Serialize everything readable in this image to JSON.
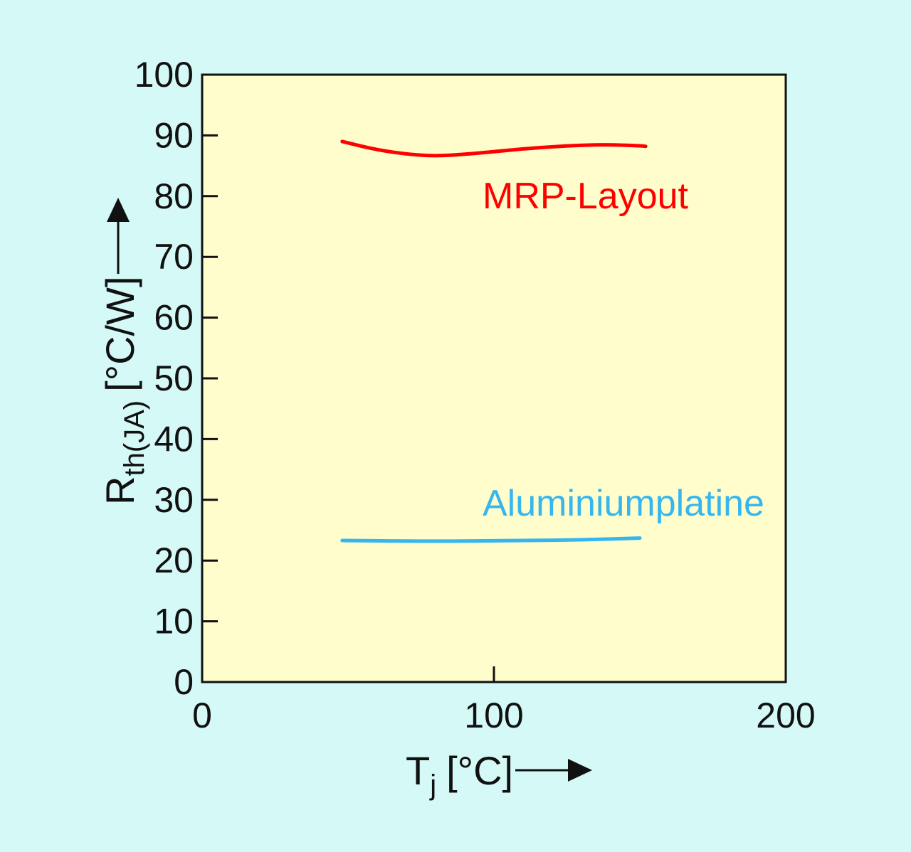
{
  "colors": {
    "page_background": "#d4f9f6",
    "plot_background": "#fffdcc",
    "axis": "#111111"
  },
  "chart_data": {
    "type": "line",
    "title": "",
    "xlabel": {
      "main": "T",
      "sub": "j",
      "unit": "[°C]"
    },
    "ylabel": {
      "main": "R",
      "sub": "th(JA)",
      "unit": "[°C/W]"
    },
    "xlim": [
      0,
      200
    ],
    "ylim": [
      0,
      100
    ],
    "x_ticks": [
      0,
      100,
      200
    ],
    "y_ticks": [
      0,
      10,
      20,
      30,
      40,
      50,
      60,
      70,
      80,
      90,
      100
    ],
    "grid": false,
    "series": [
      {
        "name": "MRP-Layout",
        "color": "#ff0000",
        "points": [
          [
            48,
            89.0
          ],
          [
            60,
            87.6
          ],
          [
            72,
            86.8
          ],
          [
            82,
            86.6
          ],
          [
            95,
            87.1
          ],
          [
            110,
            87.8
          ],
          [
            125,
            88.3
          ],
          [
            138,
            88.5
          ],
          [
            150,
            88.3
          ],
          [
            152,
            88.2
          ]
        ]
      },
      {
        "name": "Aluminiumplatine",
        "color": "#35b6ef",
        "points": [
          [
            48,
            23.3
          ],
          [
            70,
            23.2
          ],
          [
            90,
            23.2
          ],
          [
            110,
            23.3
          ],
          [
            130,
            23.4
          ],
          [
            150,
            23.7
          ]
        ]
      }
    ]
  }
}
